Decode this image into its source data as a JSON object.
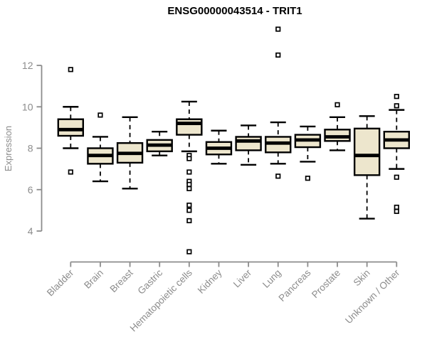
{
  "page": {
    "background": "#ffffff"
  },
  "chart_data": {
    "type": "boxplot",
    "title": "ENSG00000043514 - TRIT1",
    "ylabel": "Expression",
    "xlabel": "",
    "y_ticks": [
      4,
      6,
      8,
      10,
      12
    ],
    "ylim": [
      4,
      12
    ],
    "grid": false,
    "legend": "none",
    "categories": [
      "Bladder",
      "Brain",
      "Breast",
      "Gastric",
      "Hematopoietic cells",
      "Kidney",
      "Liver",
      "Lung",
      "Pancreas",
      "Prostate",
      "Skin",
      "Unknown / Other"
    ],
    "series": [
      {
        "category": "Bladder",
        "low": 8.0,
        "q1": 8.6,
        "median": 8.9,
        "q3": 9.4,
        "high": 10.0,
        "outliers": [
          11.8,
          6.85
        ]
      },
      {
        "category": "Brain",
        "low": 6.4,
        "q1": 7.25,
        "median": 7.65,
        "q3": 8.0,
        "high": 8.55,
        "outliers": [
          9.6
        ]
      },
      {
        "category": "Breast",
        "low": 6.05,
        "q1": 7.3,
        "median": 7.75,
        "q3": 8.25,
        "high": 9.5,
        "outliers": []
      },
      {
        "category": "Gastric",
        "low": 7.65,
        "q1": 7.85,
        "median": 8.15,
        "q3": 8.4,
        "high": 8.8,
        "outliers": []
      },
      {
        "category": "Hematopoietic cells",
        "low": 7.85,
        "q1": 8.65,
        "median": 9.2,
        "q3": 9.4,
        "high": 10.25,
        "outliers": [
          7.65,
          7.5,
          6.85,
          6.4,
          6.25,
          6.05,
          5.25,
          5.0,
          4.5,
          3.0
        ]
      },
      {
        "category": "Kidney",
        "low": 7.25,
        "q1": 7.7,
        "median": 8.0,
        "q3": 8.3,
        "high": 8.85,
        "outliers": []
      },
      {
        "category": "Liver",
        "low": 7.2,
        "q1": 7.9,
        "median": 8.35,
        "q3": 8.55,
        "high": 9.1,
        "outliers": []
      },
      {
        "category": "Lung",
        "low": 7.25,
        "q1": 7.8,
        "median": 8.25,
        "q3": 8.55,
        "high": 9.25,
        "outliers": [
          13.75,
          12.5,
          6.65
        ]
      },
      {
        "category": "Pancreas",
        "low": 7.35,
        "q1": 8.05,
        "median": 8.4,
        "q3": 8.65,
        "high": 9.05,
        "outliers": [
          6.55
        ]
      },
      {
        "category": "Prostate",
        "low": 7.9,
        "q1": 8.35,
        "median": 8.55,
        "q3": 8.9,
        "high": 9.5,
        "outliers": [
          10.1
        ]
      },
      {
        "category": "Skin",
        "low": 4.6,
        "q1": 6.7,
        "median": 7.65,
        "q3": 8.95,
        "high": 9.55,
        "outliers": []
      },
      {
        "category": "Unknown / Other",
        "low": 7.0,
        "q1": 8.0,
        "median": 8.4,
        "q3": 8.8,
        "high": 9.85,
        "outliers": [
          10.5,
          10.05,
          6.6,
          5.15,
          4.95
        ]
      }
    ],
    "style": {
      "box_fill": "#ede6cd",
      "box_stroke": "#000000",
      "median_color": "#000000",
      "whisker_color": "#000000",
      "outlier_fill": "#ffffff",
      "outlier_stroke": "#000000",
      "axis_color": "#8c8c8c",
      "title_color": "#000000"
    }
  }
}
